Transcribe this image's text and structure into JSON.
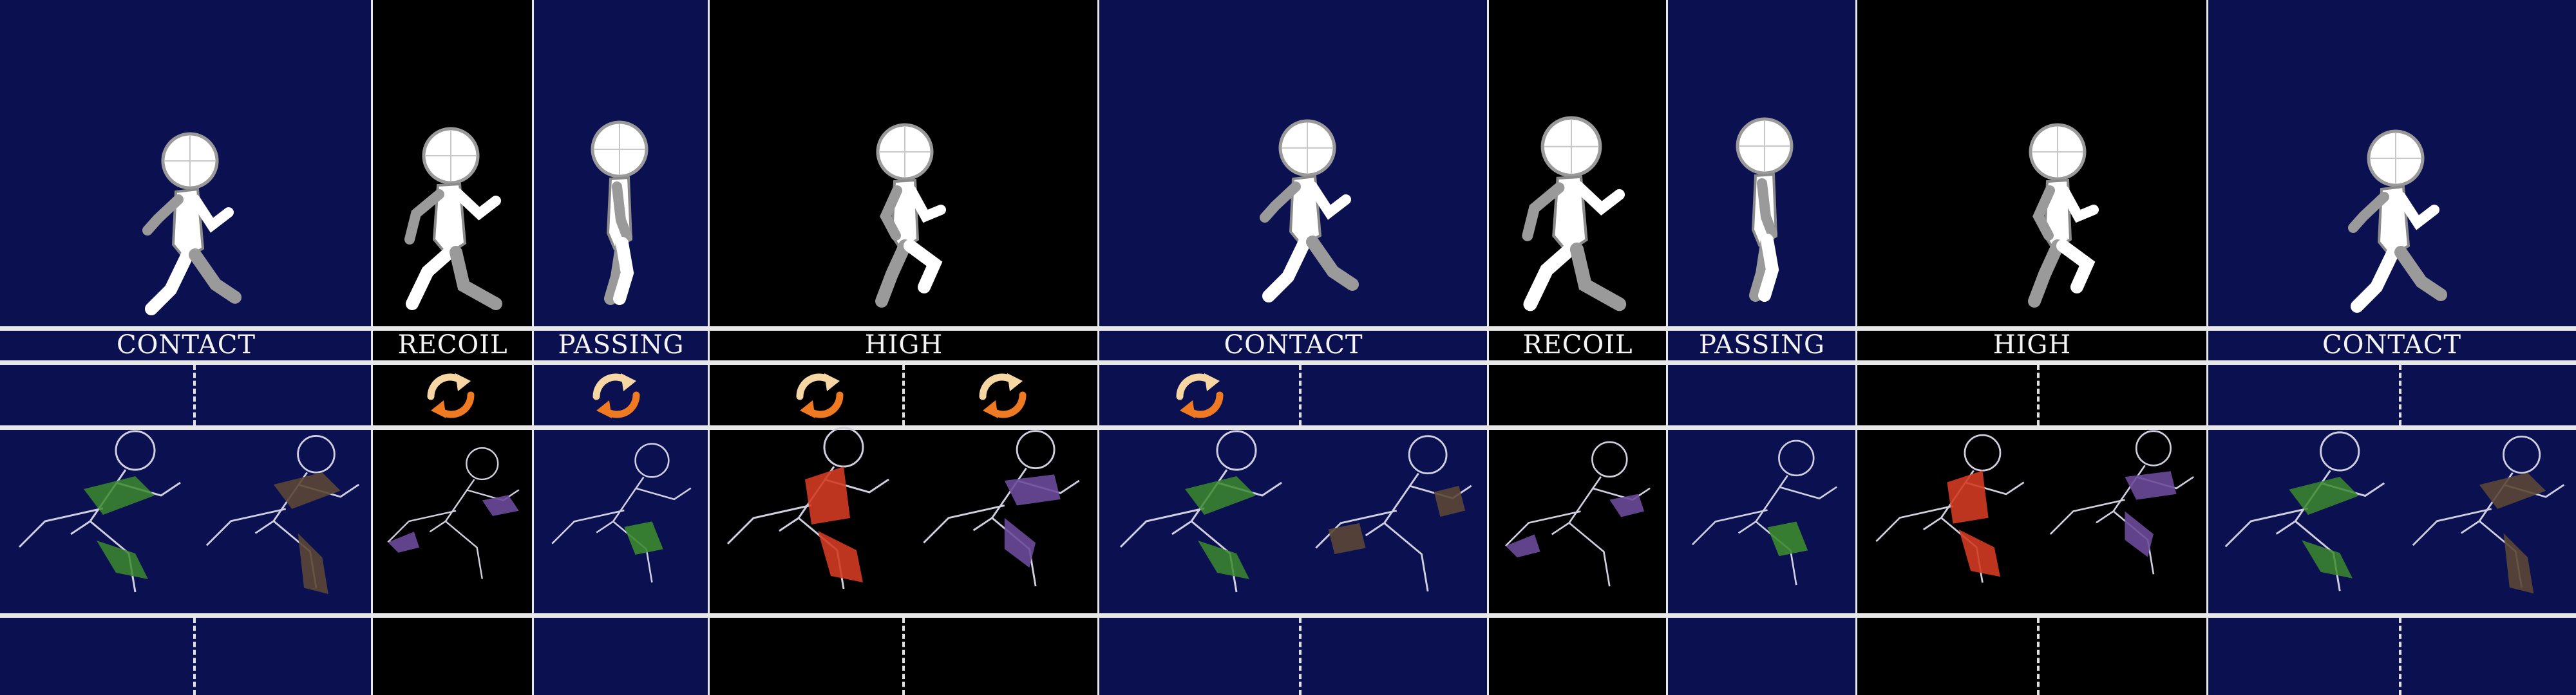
{
  "labels": {
    "l1": "CONTACT",
    "l2": "RECOIL",
    "l3": "PASSING",
    "l4": "HIGH",
    "l5": "CONTACT",
    "l6": "RECOIL",
    "l7": "PASSING",
    "l8": "HIGH",
    "l9": "CONTACT"
  },
  "colors": {
    "navy": "#0b1150",
    "black": "#000000",
    "line": "#e8e8e8",
    "figure_fill": "#ffffff",
    "figure_shadow": "#9a9a9a",
    "cycle_light": "#f6d7a4",
    "cycle_orange": "#f07a22",
    "sketch_green": "#3c8a2e",
    "sketch_brown": "#5a4636",
    "sketch_purple": "#6a4a9a",
    "sketch_red": "#d23a22"
  },
  "icons": {
    "loop": "cycle-arrows-icon"
  }
}
